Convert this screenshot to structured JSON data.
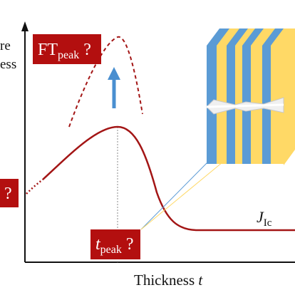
{
  "colors": {
    "curve": "#a31515",
    "label_box": "#b30f0f",
    "arrow": "#4a8fd0",
    "axis": "#111111",
    "stripe_blue": "#5b9bd5",
    "stripe_yellow": "#ffd966"
  },
  "y_axis_label": {
    "line1": "re",
    "line2": "ess"
  },
  "x_axis_label": {
    "text": "Thickness ",
    "variable": "t"
  },
  "labels": {
    "ft_peak": {
      "main": "FT",
      "sub": "peak",
      "suffix": " ?"
    },
    "t_peak": {
      "main": "t",
      "sub": "peak",
      "suffix": " ?"
    },
    "left_box": {
      "text": "?"
    },
    "j_ic": {
      "main": "J",
      "sub": "Ic"
    }
  },
  "icons": {
    "arrow": "up-arrow-icon",
    "specimen": "laminate-specimen-icon"
  }
}
